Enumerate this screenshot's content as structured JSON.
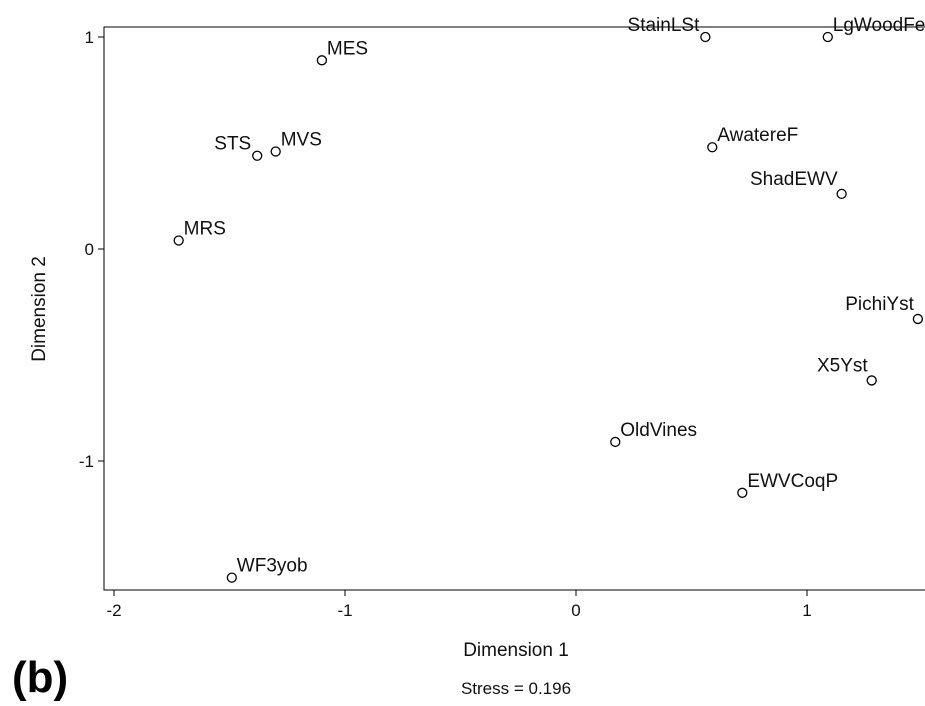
{
  "chart_data": {
    "type": "scatter",
    "title": "",
    "xlabel": "Dimension 1",
    "ylabel": "Dimension 2",
    "xlim": [
      -2.05,
      1.5
    ],
    "ylim": [
      -1.6,
      1.05
    ],
    "x_ticks": [
      -2,
      -1,
      0,
      1
    ],
    "y_ticks": [
      -1,
      0,
      1
    ],
    "grid": false,
    "marker": "open-circle",
    "points": [
      {
        "label": "MES",
        "x": -1.1,
        "y": 0.89
      },
      {
        "label": "STS",
        "x": -1.38,
        "y": 0.44
      },
      {
        "label": "MVS",
        "x": -1.3,
        "y": 0.46
      },
      {
        "label": "MRS",
        "x": -1.72,
        "y": 0.04
      },
      {
        "label": "WF3yob",
        "x": -1.49,
        "y": -1.55
      },
      {
        "label": "StainLSt",
        "x": 0.56,
        "y": 1.0
      },
      {
        "label": "LgWoodFe",
        "x": 1.09,
        "y": 1.0
      },
      {
        "label": "AwatereF",
        "x": 0.59,
        "y": 0.48
      },
      {
        "label": "ShadEWV",
        "x": 1.15,
        "y": 0.26
      },
      {
        "label": "PichiYst",
        "x": 1.48,
        "y": -0.33
      },
      {
        "label": "X5Yst",
        "x": 1.28,
        "y": -0.62
      },
      {
        "label": "OldVines",
        "x": 0.17,
        "y": -0.91
      },
      {
        "label": "EWVCoqP",
        "x": 0.72,
        "y": -1.15
      }
    ],
    "footnote": "Stress = 0.196",
    "panel_label": "(b)"
  }
}
